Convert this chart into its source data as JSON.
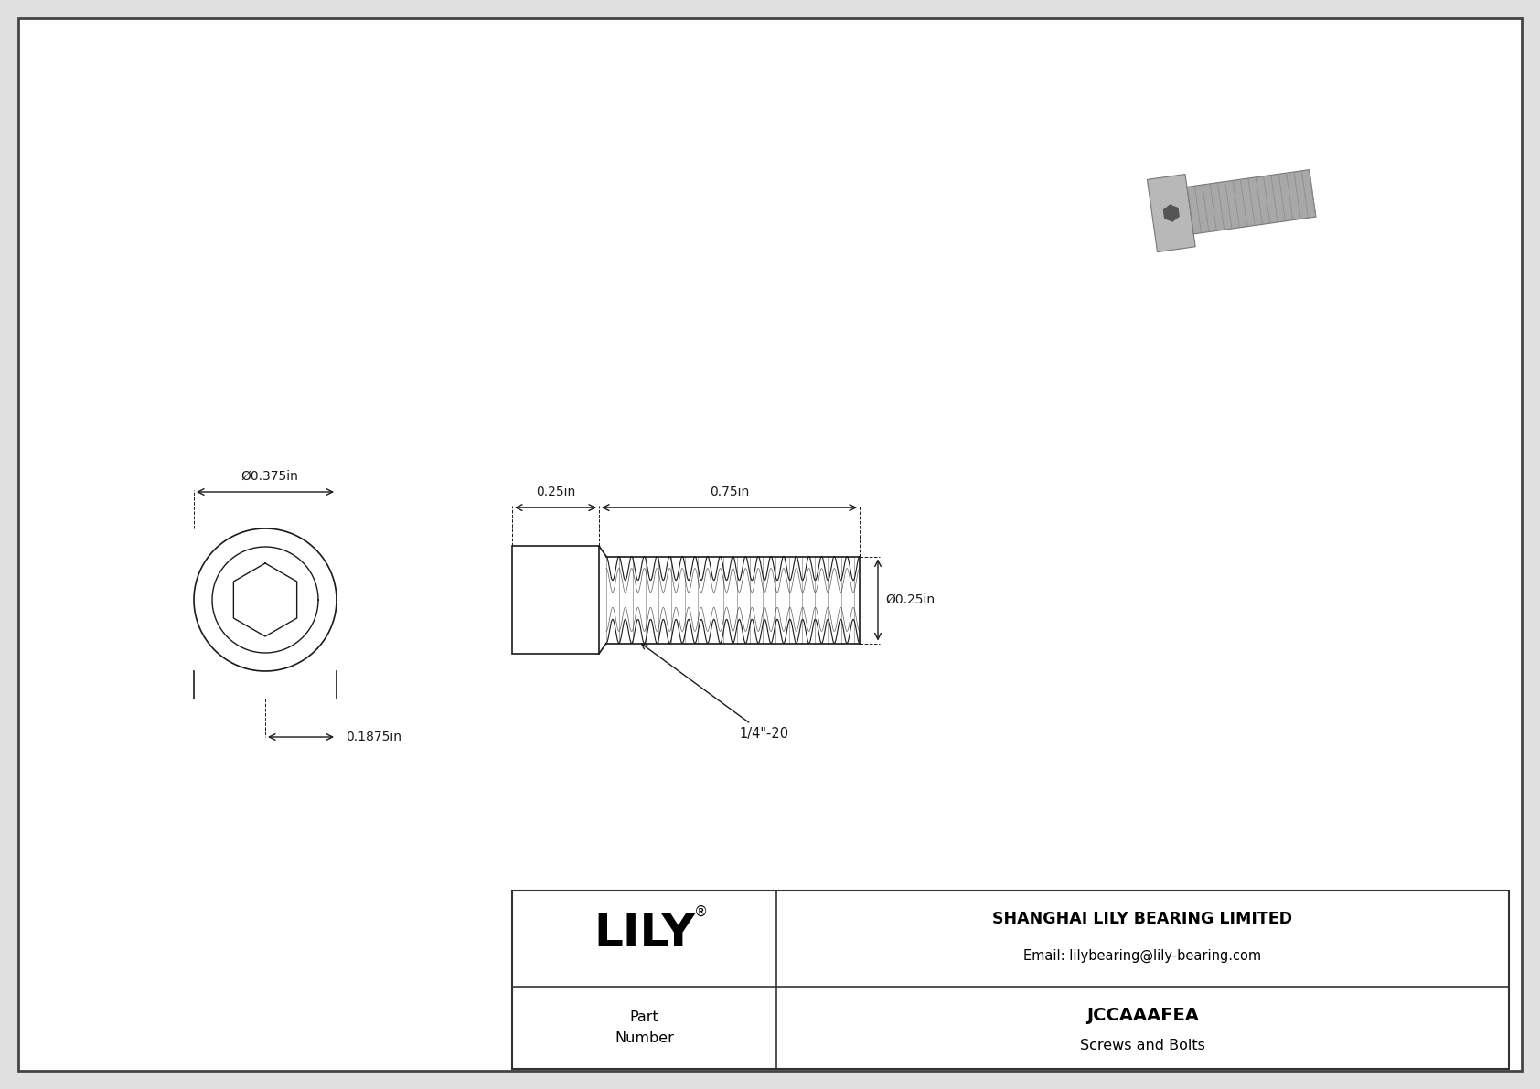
{
  "bg_color": "#e0e0e0",
  "drawing_bg": "#ffffff",
  "line_color": "#1a1a1a",
  "dim_outer": "Ø0.375in",
  "dim_depth": "0.1875in",
  "dim_head": "0.25in",
  "dim_thread": "0.75in",
  "dim_shank_dia": "Ø0.25in",
  "dim_thread_label": "1/4\"-20",
  "title_company": "SHANGHAI LILY BEARING LIMITED",
  "title_email": "Email: lilybearing@lily-bearing.com",
  "part_label": "Part\nNumber",
  "part_number": "JCCAAAFEA",
  "part_category": "Screws and Bolts",
  "brand": "LILY",
  "font_size_brand": 36,
  "font_size_dim": 10,
  "font_size_table": 11
}
